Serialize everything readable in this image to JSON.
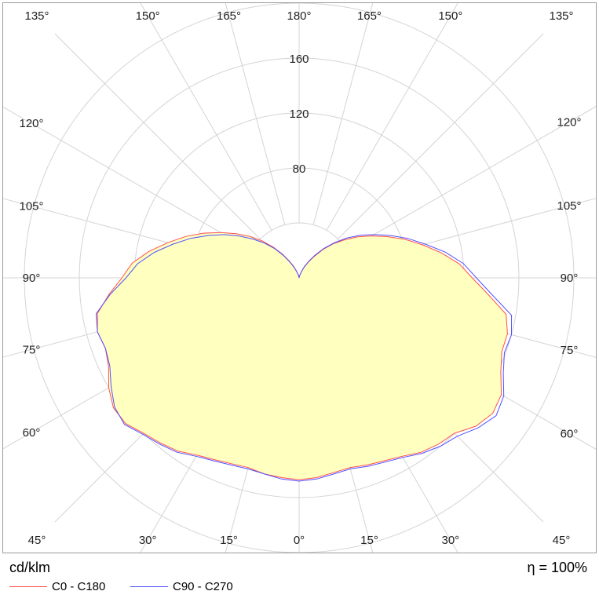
{
  "chart_data": {
    "type": "polar",
    "unit": "cd/klm",
    "efficiency": "η = 100%",
    "radial_ticks": [
      40,
      80,
      120,
      160,
      200
    ],
    "radial_tick_labels": [
      "80",
      "120",
      "160"
    ],
    "angle_labels": [
      {
        "text": "135°",
        "deg": 135,
        "side": "left"
      },
      {
        "text": "150°",
        "deg": 150,
        "side": "left"
      },
      {
        "text": "165°",
        "deg": 165,
        "side": "left"
      },
      {
        "text": "180°",
        "deg": 180,
        "side": "center"
      },
      {
        "text": "165°",
        "deg": 165,
        "side": "right"
      },
      {
        "text": "150°",
        "deg": 150,
        "side": "right"
      },
      {
        "text": "135°",
        "deg": 135,
        "side": "right"
      },
      {
        "text": "120°",
        "deg": 120,
        "side": "left"
      },
      {
        "text": "120°",
        "deg": 120,
        "side": "right"
      },
      {
        "text": "105°",
        "deg": 105,
        "side": "left"
      },
      {
        "text": "105°",
        "deg": 105,
        "side": "right"
      },
      {
        "text": "90°",
        "deg": 90,
        "side": "left"
      },
      {
        "text": "90°",
        "deg": 90,
        "side": "right"
      },
      {
        "text": "75°",
        "deg": 75,
        "side": "left"
      },
      {
        "text": "75°",
        "deg": 75,
        "side": "right"
      },
      {
        "text": "60°",
        "deg": 60,
        "side": "left"
      },
      {
        "text": "60°",
        "deg": 60,
        "side": "right"
      },
      {
        "text": "45°",
        "deg": 45,
        "side": "left"
      },
      {
        "text": "45°",
        "deg": 45,
        "side": "right"
      },
      {
        "text": "30°",
        "deg": 30,
        "side": "left"
      },
      {
        "text": "30°",
        "deg": 30,
        "side": "right"
      },
      {
        "text": "15°",
        "deg": 15,
        "side": "left"
      },
      {
        "text": "15°",
        "deg": 15,
        "side": "right"
      },
      {
        "text": "0°",
        "deg": 0,
        "side": "center"
      }
    ],
    "gamma": [
      0,
      5,
      10,
      15,
      20,
      25,
      30,
      35,
      40,
      45,
      50,
      55,
      60,
      65,
      70,
      75,
      80,
      85,
      90,
      95,
      100,
      105,
      110,
      115,
      120,
      125,
      130,
      135,
      140,
      145,
      150,
      155,
      160,
      165,
      170,
      175,
      180
    ],
    "series": [
      {
        "name": "C0 - C180",
        "color": "#ff5050",
        "right": [
          147,
          146,
          144,
          143,
          145,
          147,
          150,
          155,
          158,
          160,
          168,
          172,
          170,
          162,
          157,
          157,
          153,
          138,
          126,
          117,
          105,
          93,
          82,
          71,
          61,
          52,
          43,
          35,
          27,
          19,
          13,
          8,
          4,
          2,
          1,
          0,
          0
        ],
        "left": [
          147,
          146,
          145,
          143,
          144,
          146,
          149,
          154,
          157,
          160,
          165,
          165,
          160,
          153,
          150,
          152,
          149,
          139,
          129,
          122,
          111,
          99,
          88,
          77,
          66,
          56,
          47,
          38,
          29,
          21,
          14,
          9,
          5,
          2,
          1,
          0,
          0
        ]
      },
      {
        "name": "C90 - C270",
        "color": "#5050ff",
        "right": [
          148,
          147,
          145,
          144,
          146,
          148,
          151,
          156,
          160,
          163,
          170,
          175,
          172,
          164,
          159,
          160,
          157,
          141,
          129,
          120,
          108,
          95,
          84,
          73,
          63,
          54,
          45,
          36,
          28,
          20,
          14,
          9,
          5,
          2,
          1,
          0,
          0
        ],
        "left": [
          148,
          147,
          145,
          144,
          145,
          147,
          150,
          155,
          158,
          161,
          166,
          164,
          158,
          152,
          150,
          152,
          150,
          138,
          126,
          118,
          107,
          95,
          84,
          73,
          63,
          53,
          44,
          36,
          28,
          20,
          13,
          8,
          4,
          2,
          1,
          0,
          0
        ]
      }
    ],
    "fill_color": "#ffffc0",
    "grid": true
  }
}
